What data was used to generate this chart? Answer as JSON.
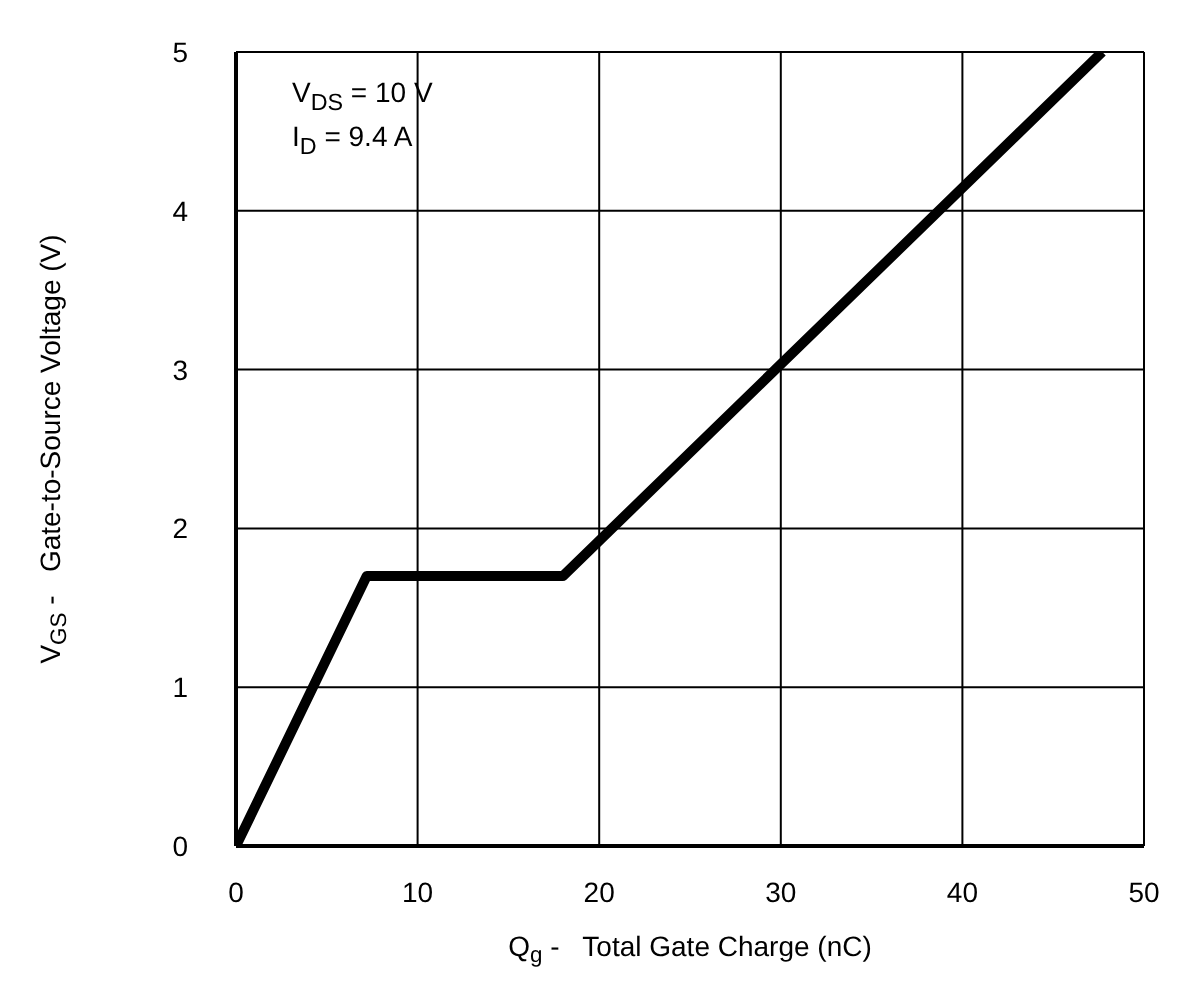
{
  "chart_data": {
    "type": "line",
    "xlabel": "Q$_{g}$ -   Total Gate Charge (nC)",
    "ylabel": "V$_{GS}$ -   Gate-to-Source Voltage (V)",
    "annotations": [
      "V$_{DS}$ = 10 V",
      "I$_{D}$ = 9.4 A"
    ],
    "series": [
      {
        "color": "#000000",
        "x": [
          0,
          7.2,
          18,
          47.7
        ],
        "values": [
          0,
          1.7,
          1.7,
          5
        ]
      }
    ],
    "xlim": [
      0,
      50
    ],
    "xticks": [
      0,
      10,
      20,
      30,
      40,
      50
    ],
    "ylim": [
      0,
      5
    ],
    "yticks": [
      0,
      1,
      2,
      3,
      4,
      5
    ],
    "grid": true,
    "marker": "none",
    "line_style": "solid"
  }
}
